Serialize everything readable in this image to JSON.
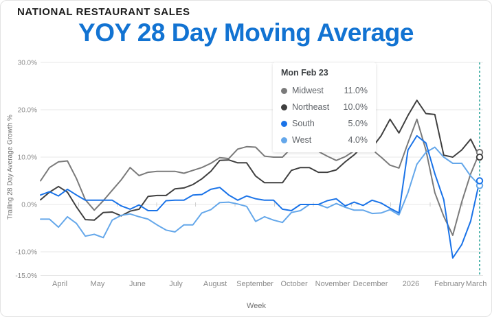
{
  "header": {
    "eyebrow": "NATIONAL RESTAURANT SALES",
    "title": "YOY 28 Day Moving Average"
  },
  "chart_data": {
    "type": "line",
    "title": "YOY 28 Day Moving Average",
    "xlabel": "Week",
    "ylabel": "Trailing 28 Day Average Growth %",
    "ylim": [
      -15,
      30
    ],
    "grid": true,
    "weeks": 50,
    "y_ticks": [
      {
        "v": 30,
        "label": "30.0%"
      },
      {
        "v": 20,
        "label": "20.0%"
      },
      {
        "v": 10,
        "label": "10.0%"
      },
      {
        "v": 0,
        "label": "0.0%"
      },
      {
        "v": -10,
        "label": "-10.0%"
      },
      {
        "v": -15,
        "label": "-15.0%"
      }
    ],
    "x_ticks": [
      {
        "label": "April",
        "week": 2.15
      },
      {
        "label": "May",
        "week": 6.36
      },
      {
        "label": "June",
        "week": 10.81
      },
      {
        "label": "July",
        "week": 15.11
      },
      {
        "label": "August",
        "week": 19.48
      },
      {
        "label": "September",
        "week": 23.93
      },
      {
        "label": "October",
        "week": 28.3
      },
      {
        "label": "November",
        "week": 32.59
      },
      {
        "label": "December",
        "week": 36.81
      },
      {
        "label": "2026",
        "week": 41.33
      },
      {
        "label": "February",
        "week": 45.63
      },
      {
        "label": "March",
        "week": 48.62
      }
    ],
    "cursor": {
      "week": 49,
      "color": "#2ba59a",
      "style": "dashed"
    },
    "tooltip": {
      "title": "Mon Feb 23"
    },
    "legend_position": "top-center-overlay",
    "series": [
      {
        "name": "Midwest",
        "color": "#7a7a7a",
        "value_label": "11.0%",
        "values": [
          5.0,
          7.8,
          9.0,
          9.2,
          5.5,
          1.0,
          -1.2,
          0.8,
          3.0,
          5.2,
          7.8,
          6.1,
          6.8,
          7.0,
          7.0,
          7.0,
          6.6,
          7.2,
          7.8,
          8.7,
          9.9,
          9.7,
          11.7,
          12.2,
          12.1,
          10.2,
          10.0,
          10.0,
          11.9,
          12.9,
          12.4,
          11.2,
          10.2,
          9.3,
          10.1,
          11.3,
          12.6,
          11.6,
          10.0,
          8.3,
          7.7,
          13.0,
          18.0,
          11.5,
          2.5,
          -2.5,
          -6.5,
          0.5,
          6.5,
          11.0
        ]
      },
      {
        "name": "Northeast",
        "color": "#3f3f3f",
        "value_label": "10.0%",
        "values": [
          1.0,
          2.6,
          3.8,
          2.6,
          -0.5,
          -3.2,
          -3.3,
          -1.7,
          -1.6,
          -2.4,
          -1.4,
          -1.0,
          1.7,
          1.9,
          1.9,
          3.3,
          3.5,
          4.2,
          5.4,
          7.0,
          9.3,
          9.4,
          8.8,
          8.8,
          6.0,
          4.6,
          4.6,
          4.6,
          7.2,
          7.8,
          7.8,
          6.8,
          6.8,
          7.3,
          9.0,
          10.5,
          12.3,
          12.0,
          14.5,
          18.0,
          15.1,
          18.8,
          22.0,
          19.2,
          19.0,
          10.4,
          10.0,
          11.5,
          13.8,
          10.0
        ]
      },
      {
        "name": "South",
        "color": "#1a73e8",
        "value_label": "5.0%",
        "values": [
          2.0,
          2.7,
          1.8,
          3.2,
          2.0,
          0.9,
          0.9,
          0.9,
          0.9,
          -0.3,
          -1.0,
          -0.1,
          -1.3,
          -1.3,
          0.8,
          0.9,
          0.9,
          2.0,
          2.1,
          3.2,
          3.6,
          2.0,
          0.9,
          1.8,
          1.2,
          0.9,
          0.9,
          -1.0,
          -1.3,
          0.0,
          0.0,
          0.0,
          0.8,
          1.2,
          -0.3,
          0.5,
          -0.2,
          0.9,
          0.3,
          -0.8,
          -1.8,
          11.5,
          14.5,
          13.0,
          6.5,
          1.0,
          -11.3,
          -8.5,
          -3.5,
          5.0
        ]
      },
      {
        "name": "West",
        "color": "#64a7ea",
        "value_label": "4.0%",
        "values": [
          -3.1,
          -3.1,
          -4.8,
          -2.6,
          -4.0,
          -6.7,
          -6.3,
          -7.0,
          -3.3,
          -2.3,
          -2.0,
          -2.6,
          -3.1,
          -4.3,
          -5.4,
          -5.8,
          -4.3,
          -4.3,
          -1.8,
          -1.1,
          0.4,
          0.5,
          0.1,
          -0.4,
          -3.6,
          -2.6,
          -3.3,
          -3.8,
          -1.7,
          -1.3,
          0.0,
          0.0,
          -0.7,
          0.2,
          -0.6,
          -1.2,
          -1.2,
          -1.9,
          -1.8,
          -1.1,
          -2.2,
          2.5,
          8.5,
          11.0,
          12.1,
          10.0,
          8.7,
          8.7,
          6.0,
          4.0
        ]
      }
    ],
    "colors": {
      "title_blue": "#1273d2",
      "grid": "#e7e7e7",
      "tick_text": "#8a8a8a"
    }
  }
}
